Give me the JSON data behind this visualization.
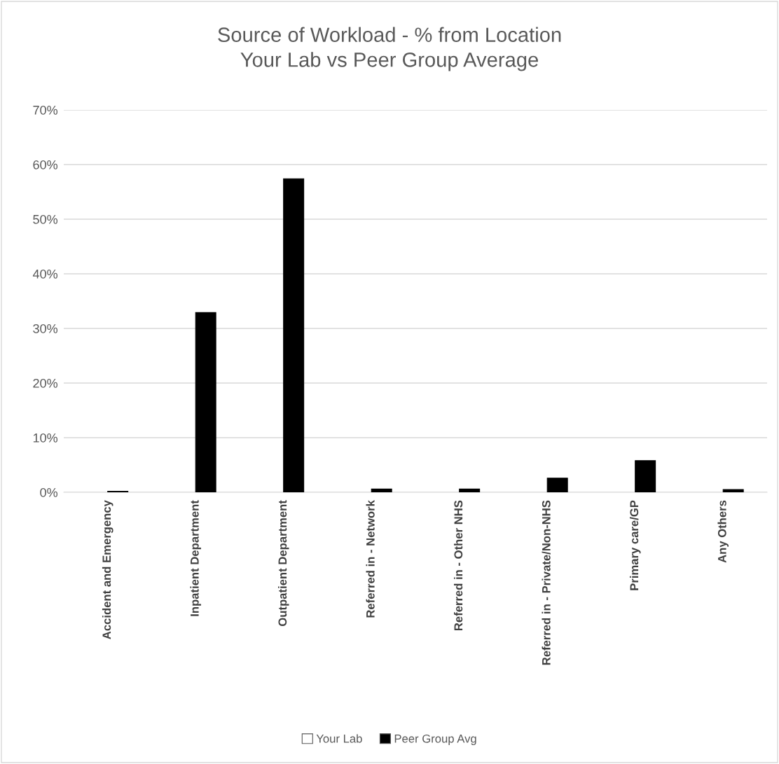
{
  "chart_data": {
    "type": "bar",
    "title": "Source of Workload - % from Location\nYour Lab vs Peer Group Average",
    "categories": [
      "Accident and Emergency",
      "Inpatient Department",
      "Outpatient Department",
      "Referred in - Network",
      "Referred in - Other NHS",
      "Referred in - Private/Non-NHS",
      "Primary care/GP",
      "Any Others"
    ],
    "series": [
      {
        "name": "Your Lab",
        "color": "#ffffff",
        "values": [
          null,
          null,
          null,
          null,
          null,
          null,
          null,
          null
        ]
      },
      {
        "name": "Peer Group Avg",
        "color": "#000000",
        "values": [
          0.2,
          32.9,
          57.4,
          0.6,
          0.6,
          2.6,
          5.8,
          0.5
        ]
      }
    ],
    "ylim": [
      0,
      70
    ],
    "yticks": [
      {
        "value": 0,
        "label": "0%"
      },
      {
        "value": 10,
        "label": "10%"
      },
      {
        "value": 20,
        "label": "20%"
      },
      {
        "value": 30,
        "label": "30%"
      },
      {
        "value": 40,
        "label": "40%"
      },
      {
        "value": 50,
        "label": "50%"
      },
      {
        "value": 60,
        "label": "60%"
      },
      {
        "value": 70,
        "label": "70%"
      }
    ],
    "grid": "y",
    "legend": "bottom"
  }
}
